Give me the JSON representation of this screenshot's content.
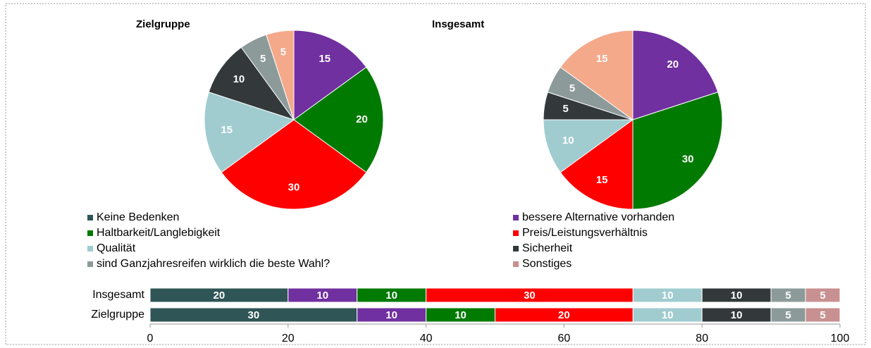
{
  "chart_data": [
    {
      "type": "pie",
      "title": "Zielgruppe",
      "categories": [
        "bessere Alternative vorhanden",
        "Haltbarkeit/Langlebigkeit",
        "Preis/Leistungsverhältnis",
        "Qualität",
        "Sicherheit",
        "sind Ganzjahresreifen wirklich die beste Wahl?",
        "Sonstiges"
      ],
      "values": [
        15,
        20,
        30,
        15,
        10,
        5,
        5
      ],
      "colors": [
        "#7030a0",
        "#007a00",
        "#ff0000",
        "#a0ccd0",
        "#33393b",
        "#8c9a9a",
        "#f4a98b"
      ]
    },
    {
      "type": "pie",
      "title": "Insgesamt",
      "categories": [
        "bessere Alternative vorhanden",
        "Haltbarkeit/Langlebigkeit",
        "Preis/Leistungsverhältnis",
        "Qualität",
        "Sicherheit",
        "sind Ganzjahresreifen wirklich die beste Wahl?",
        "Sonstiges"
      ],
      "values": [
        20,
        30,
        15,
        10,
        5,
        5,
        15
      ],
      "colors": [
        "#7030a0",
        "#007a00",
        "#ff0000",
        "#a0ccd0",
        "#33393b",
        "#8c9a9a",
        "#f4a98b"
      ]
    },
    {
      "type": "stacked_bar_horizontal",
      "categories": [
        "Insgesamt",
        "Zielgruppe"
      ],
      "series": [
        {
          "name": "Keine Bedenken",
          "color": "#2f5556",
          "values": [
            20,
            30
          ]
        },
        {
          "name": "bessere Alternative vorhanden",
          "color": "#7030a0",
          "values": [
            10,
            10
          ]
        },
        {
          "name": "Haltbarkeit/Langlebigkeit",
          "color": "#007a00",
          "values": [
            10,
            10
          ]
        },
        {
          "name": "Preis/Leistungsverhältnis",
          "color": "#ff0000",
          "values": [
            30,
            20
          ]
        },
        {
          "name": "Qualität",
          "color": "#a0ccd0",
          "values": [
            10,
            10
          ]
        },
        {
          "name": "Sicherheit",
          "color": "#33393b",
          "values": [
            10,
            10
          ]
        },
        {
          "name": "sind Ganzjahresreifen wirklich die beste Wahl?",
          "color": "#8c9a9a",
          "values": [
            5,
            5
          ]
        },
        {
          "name": "Sonstiges",
          "color": "#c89090",
          "values": [
            5,
            5
          ]
        }
      ],
      "xlim": [
        0,
        100
      ],
      "xticks": [
        0,
        20,
        40,
        60,
        80,
        100
      ]
    }
  ]
}
